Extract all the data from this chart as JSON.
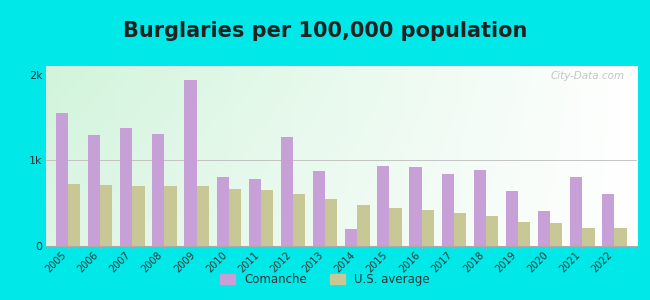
{
  "title": "Burglaries per 100,000 population",
  "years": [
    2005,
    2006,
    2007,
    2008,
    2009,
    2010,
    2011,
    2012,
    2013,
    2014,
    2015,
    2016,
    2017,
    2018,
    2019,
    2020,
    2021,
    2022
  ],
  "comanche": [
    1550,
    1290,
    1380,
    1310,
    1940,
    810,
    780,
    1270,
    870,
    200,
    930,
    920,
    840,
    890,
    640,
    410,
    810,
    610
  ],
  "us_average": [
    720,
    710,
    700,
    700,
    700,
    660,
    650,
    610,
    550,
    480,
    440,
    420,
    380,
    345,
    280,
    265,
    210,
    210
  ],
  "comanche_color": "#c8a0d8",
  "us_avg_color": "#c8c896",
  "bg_outer": "#00e8e8",
  "ylim": [
    0,
    2100
  ],
  "ytick_labels": [
    "0",
    "1k",
    "2k"
  ],
  "bar_width": 0.38,
  "legend_labels": [
    "Comanche",
    "U.S. average"
  ],
  "title_fontsize": 15,
  "watermark": "City-Data.com"
}
